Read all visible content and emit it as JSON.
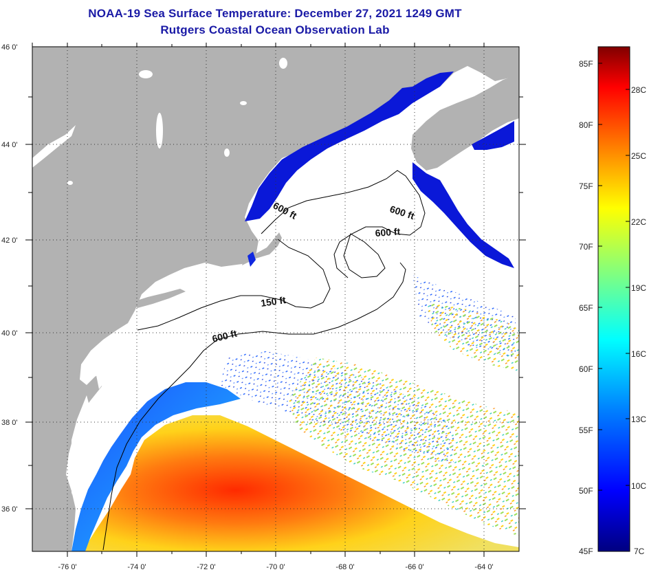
{
  "title": {
    "line1": "NOAA-19 Sea Surface Temperature:  December 27, 2021 1249 GMT",
    "line2": "Rutgers Coastal Ocean Observation Lab"
  },
  "map": {
    "projection": "lat-lon",
    "lon_range": [
      -77,
      -63
    ],
    "lat_range": [
      35,
      46
    ],
    "lat_ticks": [
      {
        "value": 46,
        "label": "46 0'"
      },
      {
        "value": 44,
        "label": "44 0'"
      },
      {
        "value": 42,
        "label": "42 0'"
      },
      {
        "value": 40,
        "label": "40 0'"
      },
      {
        "value": 38,
        "label": "38 0'"
      },
      {
        "value": 36,
        "label": "36 0'"
      }
    ],
    "lon_ticks": [
      {
        "value": -76,
        "label": "-76 0'"
      },
      {
        "value": -74,
        "label": "-74 0'"
      },
      {
        "value": -72,
        "label": "-72 0'"
      },
      {
        "value": -70,
        "label": "-70 0'"
      },
      {
        "value": -68,
        "label": "-68 0'"
      },
      {
        "value": -66,
        "label": "-66 0'"
      },
      {
        "value": -64,
        "label": "-64 0'"
      }
    ],
    "grid": "dotted",
    "land_color": "#b2b2b2",
    "no_data_color": "#ffffff",
    "contour_labels": [
      {
        "text": "600 ft",
        "id": "contour-600-gulf-of-maine"
      },
      {
        "text": "600 ft",
        "id": "contour-600-northeast-channel"
      },
      {
        "text": "600 ft",
        "id": "contour-600-georges-bank"
      },
      {
        "text": "150 ft",
        "id": "contour-150"
      },
      {
        "text": "600 ft",
        "id": "contour-600-shelf-break"
      }
    ]
  },
  "colorbar": {
    "fahrenheit_labels": [
      "85F",
      "80F",
      "75F",
      "70F",
      "65F",
      "60F",
      "55F",
      "50F",
      "45F"
    ],
    "celsius_labels": [
      "28C",
      "25C",
      "22C",
      "19C",
      "16C",
      "13C",
      "10C",
      "7C"
    ],
    "range_f": [
      45,
      86
    ],
    "range_c": [
      7,
      30
    ],
    "colors": [
      "#000080",
      "#0000ff",
      "#0080ff",
      "#00ffff",
      "#80ff80",
      "#ffff00",
      "#ff8000",
      "#ff0000",
      "#800000"
    ]
  }
}
